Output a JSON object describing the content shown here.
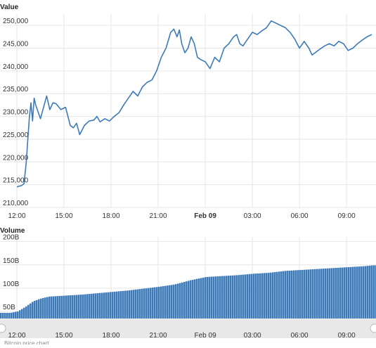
{
  "chart_data": [
    {
      "type": "line",
      "title": "Value",
      "xlabel": "",
      "ylabel": "",
      "x_ticks": [
        "12:00",
        "15:00",
        "18:00",
        "21:00",
        "Feb 09",
        "03:00",
        "06:00",
        "09:00"
      ],
      "x_tick_bold": [
        false,
        false,
        false,
        false,
        true,
        false,
        false,
        false
      ],
      "y_ticks": [
        "210,000",
        "215,000",
        "220,000",
        "225,000",
        "230,000",
        "235,000",
        "240,000",
        "245,000",
        "250,000"
      ],
      "ylim": [
        210000,
        252500
      ],
      "xlim_hours": [
        -0.5,
        22.6
      ],
      "grid": true,
      "line_color": "#3d7ab8",
      "series": [
        {
          "x_hours": [
            0,
            0.3,
            0.45,
            0.6,
            0.7,
            0.8,
            0.9,
            1.0,
            1.1,
            1.2,
            1.35,
            1.5,
            1.7,
            1.9,
            2.1,
            2.3,
            2.5,
            2.8,
            3.1,
            3.4,
            3.6,
            3.8,
            4.0,
            4.3,
            4.6,
            4.9,
            5.1,
            5.3,
            5.6,
            5.9,
            6.2,
            6.5,
            6.8,
            7.1,
            7.4,
            7.7,
            8.0,
            8.3,
            8.6,
            8.9,
            9.2,
            9.5,
            9.8,
            10.0,
            10.2,
            10.35,
            10.5,
            10.7,
            10.9,
            11.1,
            11.3,
            11.5,
            11.7,
            12.0,
            12.3,
            12.6,
            12.9,
            13.2,
            13.5,
            13.8,
            14.0,
            14.2,
            14.4,
            14.7,
            15.0,
            15.3,
            15.6,
            15.9,
            16.2,
            16.5,
            16.8,
            17.1,
            17.4,
            17.7,
            18.0,
            18.3,
            18.6,
            18.8,
            19.0,
            19.3,
            19.6,
            19.9,
            20.2,
            20.5,
            20.8,
            21.1,
            21.4,
            21.7,
            22.0,
            22.3,
            22.6
          ],
          "values": [
            214500,
            214800,
            215200,
            220000,
            225000,
            230000,
            233000,
            229000,
            234000,
            232500,
            231000,
            229500,
            232000,
            234500,
            231500,
            233000,
            232800,
            231500,
            232000,
            228000,
            227500,
            228500,
            226000,
            228000,
            229000,
            229200,
            230000,
            228800,
            229500,
            229000,
            230000,
            230800,
            232500,
            234000,
            235500,
            234500,
            236500,
            237500,
            238000,
            240000,
            243000,
            245000,
            248500,
            249200,
            247500,
            249000,
            246000,
            244000,
            245000,
            247500,
            246000,
            243000,
            242500,
            242000,
            240500,
            243000,
            242000,
            245000,
            246000,
            247500,
            248000,
            246000,
            245500,
            247000,
            248500,
            248000,
            248800,
            249500,
            251000,
            250500,
            250000,
            249500,
            248500,
            247000,
            245000,
            246500,
            245000,
            243500,
            244000,
            244800,
            245500,
            246000,
            245500,
            246500,
            246000,
            244500,
            245000,
            246000,
            246800,
            247500,
            248000
          ]
        }
      ]
    },
    {
      "type": "bar",
      "title": "Volume",
      "xlabel": "",
      "ylabel": "",
      "x_ticks": [
        "12:00",
        "15:00",
        "18:00",
        "21:00",
        "Feb 09",
        "03:00",
        "06:00",
        "09:00"
      ],
      "x_tick_bold": [
        false,
        false,
        false,
        false,
        false,
        false,
        false,
        false
      ],
      "y_ticks": [
        "50B",
        "100B",
        "150B",
        "200B"
      ],
      "ylim": [
        35,
        210
      ],
      "grid": true,
      "bar_color": "#3d7ab8",
      "series": [
        {
          "x_hours": [
            -0.5,
            0.0,
            0.5,
            1.0,
            1.5,
            2.0,
            3.0,
            4.0,
            5.0,
            6.0,
            7.0,
            8.0,
            9.0,
            10.0,
            11.0,
            12.0,
            13.0,
            14.0,
            15.0,
            16.0,
            17.0,
            18.0,
            19.0,
            20.0,
            21.0,
            22.0,
            22.6
          ],
          "values": [
            47,
            50,
            60,
            72,
            78,
            82,
            84,
            86,
            89,
            92,
            95,
            99,
            103,
            108,
            117,
            124,
            126,
            128,
            131,
            133,
            137,
            139,
            141,
            143,
            145,
            147,
            149
          ]
        }
      ]
    }
  ],
  "footer": {
    "credit": "Bitcoin price chart"
  }
}
